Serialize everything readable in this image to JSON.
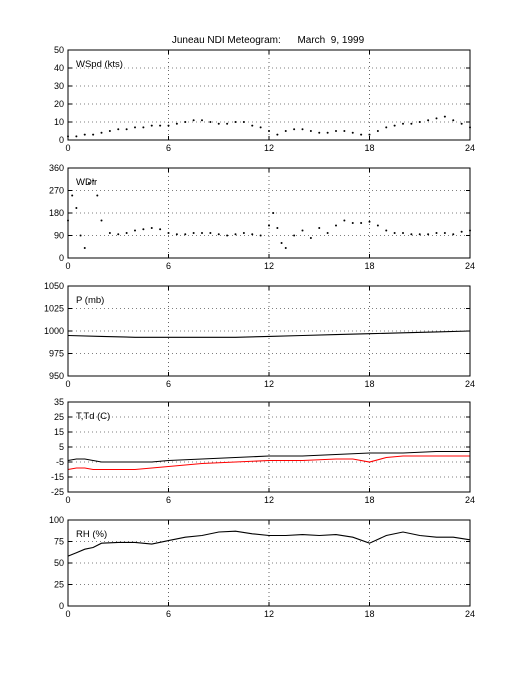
{
  "figure": {
    "title": "Juneau NDI Meteogram:      March  9, 1999"
  },
  "chart_data": [
    {
      "type": "scatter",
      "label": "WSpd (kts)",
      "xlim": [
        0,
        24
      ],
      "ylim": [
        0,
        50
      ],
      "xticks": [
        0,
        6,
        12,
        18,
        24
      ],
      "yticks": [
        0,
        10,
        20,
        30,
        40,
        50
      ],
      "grid": true,
      "series": [
        {
          "color": "#000000",
          "x": [
            0,
            0.5,
            1,
            1.5,
            2,
            2.5,
            3,
            3.5,
            4,
            4.5,
            5,
            5.5,
            6,
            6.5,
            7,
            7.5,
            8,
            8.5,
            9,
            9.5,
            10,
            10.5,
            11,
            11.5,
            12,
            12.5,
            13,
            13.5,
            14,
            14.5,
            15,
            15.5,
            16,
            16.5,
            17,
            17.5,
            18,
            18.5,
            19,
            19.5,
            20,
            20.5,
            21,
            21.5,
            22,
            22.5,
            23,
            23.5,
            24
          ],
          "y": [
            2,
            2,
            3,
            3,
            4,
            5,
            6,
            6,
            7,
            7,
            8,
            8,
            8,
            9,
            10,
            11,
            11,
            10,
            9,
            9,
            10,
            10,
            8,
            7,
            5,
            3,
            5,
            6,
            6,
            5,
            4,
            4,
            5,
            5,
            4,
            3,
            3,
            5,
            7,
            8,
            9,
            9,
            10,
            11,
            12,
            13,
            11,
            9,
            7
          ]
        }
      ]
    },
    {
      "type": "scatter",
      "label": "WDir",
      "xlim": [
        0,
        24
      ],
      "ylim": [
        0,
        360
      ],
      "xticks": [
        0,
        6,
        12,
        18,
        24
      ],
      "yticks": [
        0,
        90,
        180,
        270,
        360
      ],
      "grid": true,
      "series": [
        {
          "color": "#000000",
          "x": [
            0,
            0.25,
            0.5,
            0.75,
            1,
            1.25,
            1.5,
            1.75,
            2,
            2.5,
            3,
            3.5,
            4,
            4.5,
            5,
            5.5,
            6,
            6.5,
            7,
            7.5,
            8,
            8.5,
            9,
            9.5,
            10,
            10.5,
            11,
            11.5,
            12,
            12.25,
            12.5,
            12.75,
            13,
            13.5,
            14,
            14.5,
            15,
            15.5,
            16,
            16.5,
            17,
            17.5,
            18,
            18.5,
            19,
            19.5,
            20,
            20.5,
            21,
            21.5,
            22,
            22.5,
            23,
            23.5,
            24
          ],
          "y": [
            150,
            250,
            200,
            90,
            40,
            300,
            310,
            250,
            150,
            100,
            95,
            100,
            110,
            115,
            120,
            115,
            100,
            95,
            95,
            100,
            100,
            100,
            95,
            90,
            95,
            100,
            95,
            90,
            130,
            180,
            120,
            60,
            40,
            90,
            110,
            80,
            120,
            100,
            130,
            150,
            140,
            140,
            145,
            130,
            110,
            100,
            100,
            95,
            95,
            95,
            100,
            100,
            95,
            105,
            110
          ]
        }
      ]
    },
    {
      "type": "line",
      "label": "P (mb)",
      "xlim": [
        0,
        24
      ],
      "ylim": [
        950,
        1050
      ],
      "xticks": [
        0,
        6,
        12,
        18,
        24
      ],
      "yticks": [
        950,
        975,
        1000,
        1025,
        1050
      ],
      "grid": true,
      "series": [
        {
          "color": "#000000",
          "x": [
            0,
            2,
            4,
            6,
            8,
            10,
            12,
            14,
            16,
            18,
            20,
            22,
            24
          ],
          "y": [
            995,
            994,
            993,
            993,
            993,
            993,
            994,
            995,
            996,
            997,
            998,
            999,
            1000
          ]
        }
      ]
    },
    {
      "type": "line",
      "label": "T,Td (C)",
      "xlim": [
        0,
        24
      ],
      "ylim": [
        -25,
        35
      ],
      "xticks": [
        0,
        6,
        12,
        18,
        24
      ],
      "yticks": [
        -25,
        -15,
        -5,
        5,
        15,
        25,
        35
      ],
      "grid": true,
      "series": [
        {
          "color": "#000000",
          "x": [
            0,
            0.5,
            1,
            1.5,
            2,
            3,
            4,
            5,
            6,
            8,
            10,
            12,
            14,
            16,
            18,
            20,
            22,
            24
          ],
          "y": [
            -4,
            -3,
            -3,
            -4,
            -5,
            -5,
            -5,
            -5,
            -4,
            -3,
            -2,
            -1,
            -1,
            0,
            1,
            1,
            2,
            2
          ]
        },
        {
          "color": "#ff0000",
          "x": [
            0,
            0.5,
            1,
            1.5,
            2,
            3,
            4,
            5,
            6,
            8,
            10,
            12,
            14,
            16,
            17,
            18,
            19,
            20,
            22,
            24
          ],
          "y": [
            -10,
            -9,
            -9,
            -10,
            -10,
            -10,
            -10,
            -9,
            -8,
            -6,
            -5,
            -4,
            -4,
            -3,
            -3,
            -5,
            -2,
            -1,
            -1,
            -1
          ]
        }
      ]
    },
    {
      "type": "line",
      "label": "RH (%)",
      "xlim": [
        0,
        24
      ],
      "ylim": [
        0,
        100
      ],
      "xticks": [
        0,
        6,
        12,
        18,
        24
      ],
      "yticks": [
        0,
        25,
        50,
        75,
        100
      ],
      "grid": true,
      "series": [
        {
          "color": "#000000",
          "x": [
            0,
            0.5,
            1,
            1.5,
            2,
            3,
            4,
            5,
            6,
            7,
            8,
            9,
            10,
            11,
            12,
            13,
            14,
            15,
            16,
            17,
            18,
            19,
            20,
            21,
            22,
            23,
            24
          ],
          "y": [
            58,
            62,
            66,
            68,
            73,
            74,
            74,
            72,
            76,
            80,
            82,
            86,
            87,
            84,
            82,
            82,
            83,
            82,
            83,
            80,
            73,
            82,
            86,
            82,
            80,
            80,
            77
          ]
        }
      ]
    }
  ]
}
